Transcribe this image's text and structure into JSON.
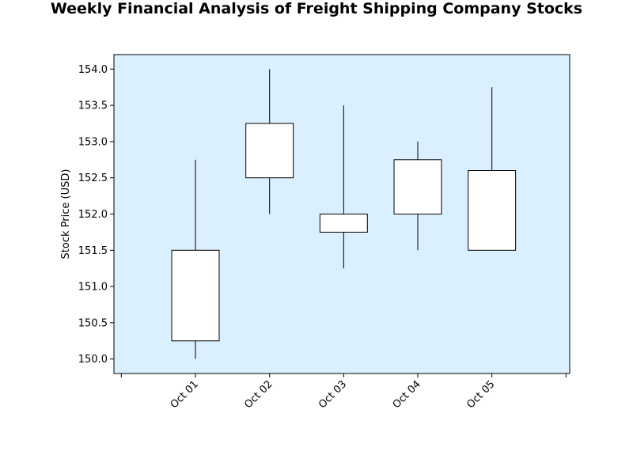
{
  "chart_data": {
    "type": "candlestick",
    "title": "Weekly Financial Analysis of Freight Shipping Company Stocks",
    "xlabel": "",
    "ylabel": "Stock Price (USD)",
    "categories": [
      "Oct 01",
      "Oct 02",
      "Oct 03",
      "Oct 04",
      "Oct 05"
    ],
    "candles": [
      {
        "date": "Oct 01",
        "open": 150.25,
        "close": 151.5,
        "high": 152.75,
        "low": 150.0
      },
      {
        "date": "Oct 02",
        "open": 152.5,
        "close": 153.25,
        "high": 154.0,
        "low": 152.0
      },
      {
        "date": "Oct 03",
        "open": 151.75,
        "close": 152.0,
        "high": 153.5,
        "low": 151.25
      },
      {
        "date": "Oct 04",
        "open": 152.0,
        "close": 152.75,
        "high": 153.0,
        "low": 151.5
      },
      {
        "date": "Oct 05",
        "open": 151.5,
        "close": 152.6,
        "high": 153.75,
        "low": 151.5
      }
    ],
    "y_ticks": [
      "150.0",
      "150.5",
      "151.0",
      "151.5",
      "152.0",
      "152.5",
      "153.0",
      "153.5",
      "154.0"
    ],
    "ylim": [
      149.8,
      154.2
    ],
    "grid": false,
    "colors": {
      "plot_background": "#dbf0ff",
      "candle_fill": "#ffffff",
      "candle_edge": "#000000"
    }
  }
}
